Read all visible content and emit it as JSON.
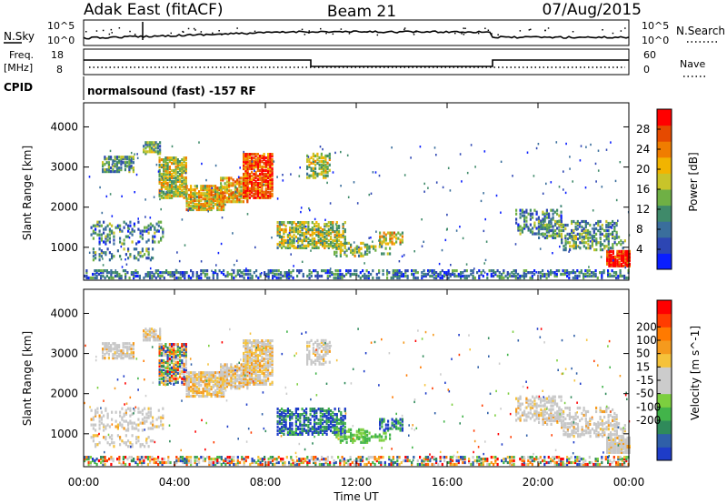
{
  "header": {
    "radar": "Adak East (fitACF)",
    "beam": "Beam 21",
    "date": "07/Aug/2015"
  },
  "noise_panel": {
    "left_label": "N.Sky",
    "right_label": "N.Search",
    "left_ticks": [
      "10^5",
      "10^0"
    ],
    "right_ticks": [
      "10^5",
      "10^0"
    ]
  },
  "freq_panel": {
    "left_label_1": "Freq.",
    "left_label_2": "[MHz]",
    "right_label": "Nave",
    "left_ticks": [
      "18",
      "8"
    ],
    "right_ticks": [
      "60",
      "0"
    ]
  },
  "cpid_panel": {
    "label": "CPID",
    "text": "normalsound (fast) -157 RF"
  },
  "chart_data": [
    {
      "type": "heatmap",
      "name": "power",
      "ylabel": "Slant Range [km]",
      "y_ticks": [
        1000,
        2000,
        3000,
        4000
      ],
      "ylim": [
        180,
        4600
      ],
      "xlim_hours": [
        0,
        24
      ],
      "colorbar": {
        "label": "Power [dB]",
        "ticks": [
          "4",
          "8",
          "12",
          "16",
          "20",
          "24",
          "28"
        ],
        "colors": [
          "#0a1eff",
          "#2d46b3",
          "#3a6e9c",
          "#3f8a6a",
          "#6fb045",
          "#c8c42a",
          "#f2b400",
          "#f07d00",
          "#e64a00",
          "#ff0000"
        ]
      }
    },
    {
      "type": "heatmap",
      "name": "velocity",
      "ylabel": "Slant Range [km]",
      "y_ticks": [
        1000,
        2000,
        3000,
        4000
      ],
      "ylim": [
        180,
        4600
      ],
      "xlim_hours": [
        0,
        24
      ],
      "colorbar": {
        "label": "Velocity [m s^-1]",
        "ticks": [
          "200",
          "100",
          "50",
          "15",
          "-15",
          "-50",
          "-100",
          "-200"
        ],
        "colors": [
          "#1e3cc8",
          "#2f5fa8",
          "#2f8a5a",
          "#42b44a",
          "#7ccf3f",
          "#cccccc",
          "#cccccc",
          "#f5c23b",
          "#f59a1d",
          "#ff7a00",
          "#ff3c00",
          "#ff0000"
        ]
      }
    }
  ],
  "x_axis": {
    "ticks": [
      "00:00",
      "04:00",
      "08:00",
      "12:00",
      "16:00",
      "20:00",
      "00:00"
    ],
    "label": "Time UT"
  }
}
